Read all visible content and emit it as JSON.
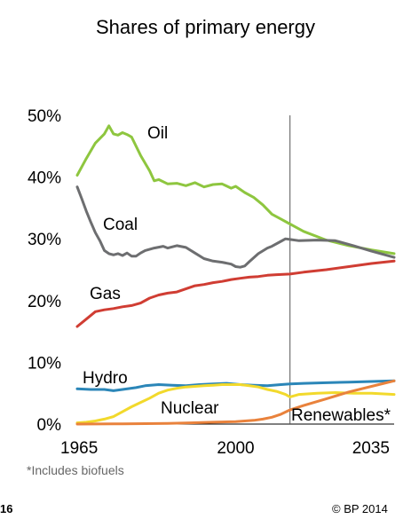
{
  "chart_data": {
    "type": "line",
    "title": "Shares of primary energy",
    "xlabel": "",
    "ylabel": "",
    "xlim": [
      1965,
      2035
    ],
    "ylim": [
      0,
      50
    ],
    "x_ticks": [
      "1965",
      "2000",
      "2035"
    ],
    "y_ticks": [
      "0%",
      "10%",
      "20%",
      "30%",
      "40%",
      "50%"
    ],
    "projection_start_year": 2012,
    "grid": false,
    "series": [
      {
        "name": "Oil",
        "color": "#8ec63f",
        "points": [
          [
            1965,
            40.3
          ],
          [
            1967,
            43
          ],
          [
            1969,
            45.5
          ],
          [
            1971,
            47
          ],
          [
            1972,
            48.3
          ],
          [
            1973,
            47
          ],
          [
            1974,
            46.8
          ],
          [
            1975,
            47.2
          ],
          [
            1976,
            46.9
          ],
          [
            1977,
            46.5
          ],
          [
            1979,
            43.5
          ],
          [
            1981,
            41
          ],
          [
            1982,
            39.4
          ],
          [
            1983,
            39.6
          ],
          [
            1985,
            38.9
          ],
          [
            1987,
            39
          ],
          [
            1989,
            38.6
          ],
          [
            1991,
            39.1
          ],
          [
            1993,
            38.4
          ],
          [
            1995,
            38.8
          ],
          [
            1997,
            38.9
          ],
          [
            1999,
            38.2
          ],
          [
            2000,
            38.5
          ],
          [
            2002,
            37.5
          ],
          [
            2004,
            36.7
          ],
          [
            2006,
            35.5
          ],
          [
            2008,
            34
          ],
          [
            2010,
            33.2
          ],
          [
            2012,
            32.4
          ],
          [
            2015,
            31.2
          ],
          [
            2020,
            29.8
          ],
          [
            2025,
            28.9
          ],
          [
            2030,
            28.2
          ],
          [
            2035,
            27.6
          ]
        ]
      },
      {
        "name": "Coal",
        "color": "#6d6e70",
        "points": [
          [
            1965,
            38.4
          ],
          [
            1966,
            36.5
          ],
          [
            1967,
            34.5
          ],
          [
            1968,
            32.7
          ],
          [
            1969,
            31
          ],
          [
            1970,
            29.7
          ],
          [
            1971,
            28.1
          ],
          [
            1972,
            27.6
          ],
          [
            1973,
            27.4
          ],
          [
            1974,
            27.6
          ],
          [
            1975,
            27.3
          ],
          [
            1976,
            27.7
          ],
          [
            1977,
            27.2
          ],
          [
            1978,
            27.2
          ],
          [
            1979,
            27.7
          ],
          [
            1980,
            28.1
          ],
          [
            1982,
            28.5
          ],
          [
            1984,
            28.8
          ],
          [
            1985,
            28.5
          ],
          [
            1987,
            28.9
          ],
          [
            1989,
            28.6
          ],
          [
            1991,
            27.7
          ],
          [
            1993,
            26.8
          ],
          [
            1995,
            26.4
          ],
          [
            1997,
            26.2
          ],
          [
            1999,
            25.9
          ],
          [
            2000,
            25.5
          ],
          [
            2001,
            25.4
          ],
          [
            2002,
            25.6
          ],
          [
            2003,
            26.3
          ],
          [
            2005,
            27.6
          ],
          [
            2007,
            28.5
          ],
          [
            2008,
            28.8
          ],
          [
            2010,
            29.6
          ],
          [
            2011,
            30
          ],
          [
            2012,
            29.9
          ],
          [
            2014,
            29.7
          ],
          [
            2018,
            29.8
          ],
          [
            2022,
            29.7
          ],
          [
            2026,
            28.9
          ],
          [
            2030,
            28
          ],
          [
            2035,
            27
          ]
        ]
      },
      {
        "name": "Gas",
        "color": "#d03d33",
        "points": [
          [
            1965,
            15.8
          ],
          [
            1967,
            17
          ],
          [
            1969,
            18.2
          ],
          [
            1971,
            18.5
          ],
          [
            1973,
            18.7
          ],
          [
            1975,
            19
          ],
          [
            1977,
            19.2
          ],
          [
            1979,
            19.6
          ],
          [
            1981,
            20.4
          ],
          [
            1983,
            20.9
          ],
          [
            1985,
            21.2
          ],
          [
            1987,
            21.4
          ],
          [
            1989,
            21.9
          ],
          [
            1991,
            22.4
          ],
          [
            1993,
            22.6
          ],
          [
            1995,
            22.9
          ],
          [
            1997,
            23.1
          ],
          [
            1999,
            23.4
          ],
          [
            2001,
            23.6
          ],
          [
            2003,
            23.8
          ],
          [
            2005,
            23.9
          ],
          [
            2007,
            24.1
          ],
          [
            2009,
            24.2
          ],
          [
            2012,
            24.3
          ],
          [
            2015,
            24.6
          ],
          [
            2020,
            25
          ],
          [
            2025,
            25.5
          ],
          [
            2030,
            26
          ],
          [
            2035,
            26.4
          ]
        ]
      },
      {
        "name": "Hydro",
        "color": "#2b86b8",
        "points": [
          [
            1965,
            5.7
          ],
          [
            1968,
            5.6
          ],
          [
            1971,
            5.6
          ],
          [
            1973,
            5.4
          ],
          [
            1975,
            5.6
          ],
          [
            1978,
            5.9
          ],
          [
            1980,
            6.2
          ],
          [
            1983,
            6.4
          ],
          [
            1986,
            6.3
          ],
          [
            1989,
            6.2
          ],
          [
            1992,
            6.4
          ],
          [
            1995,
            6.5
          ],
          [
            1998,
            6.6
          ],
          [
            2001,
            6.4
          ],
          [
            2004,
            6.3
          ],
          [
            2007,
            6.2
          ],
          [
            2010,
            6.4
          ],
          [
            2012,
            6.5
          ],
          [
            2015,
            6.6
          ],
          [
            2020,
            6.7
          ],
          [
            2025,
            6.8
          ],
          [
            2030,
            6.9
          ],
          [
            2035,
            7
          ]
        ]
      },
      {
        "name": "Nuclear",
        "color": "#f2d92c",
        "points": [
          [
            1965,
            0.2
          ],
          [
            1967,
            0.3
          ],
          [
            1969,
            0.5
          ],
          [
            1971,
            0.8
          ],
          [
            1973,
            1.2
          ],
          [
            1975,
            2
          ],
          [
            1977,
            2.8
          ],
          [
            1979,
            3.5
          ],
          [
            1981,
            4.2
          ],
          [
            1983,
            5
          ],
          [
            1985,
            5.5
          ],
          [
            1987,
            5.8
          ],
          [
            1989,
            6
          ],
          [
            1991,
            6.1
          ],
          [
            1993,
            6.2
          ],
          [
            1995,
            6.3
          ],
          [
            1997,
            6.4
          ],
          [
            1999,
            6.4
          ],
          [
            2001,
            6.4
          ],
          [
            2003,
            6.2
          ],
          [
            2005,
            6
          ],
          [
            2007,
            5.6
          ],
          [
            2009,
            5.3
          ],
          [
            2011,
            4.8
          ],
          [
            2012,
            4.4
          ],
          [
            2014,
            4.8
          ],
          [
            2018,
            5
          ],
          [
            2022,
            5.1
          ],
          [
            2026,
            5
          ],
          [
            2030,
            5
          ],
          [
            2035,
            4.8
          ]
        ]
      },
      {
        "name": "Renewables*",
        "color": "#e9823c",
        "points": [
          [
            1965,
            0
          ],
          [
            1975,
            0.05
          ],
          [
            1985,
            0.1
          ],
          [
            1990,
            0.2
          ],
          [
            1995,
            0.3
          ],
          [
            2000,
            0.4
          ],
          [
            2004,
            0.6
          ],
          [
            2006,
            0.8
          ],
          [
            2008,
            1.1
          ],
          [
            2010,
            1.6
          ],
          [
            2012,
            2.3
          ],
          [
            2015,
            3
          ],
          [
            2020,
            4.1
          ],
          [
            2025,
            5.2
          ],
          [
            2030,
            6.1
          ],
          [
            2035,
            7
          ]
        ]
      }
    ]
  },
  "footnote": "*Includes biofuels",
  "page_number": "16",
  "copyright": "© BP 2014"
}
